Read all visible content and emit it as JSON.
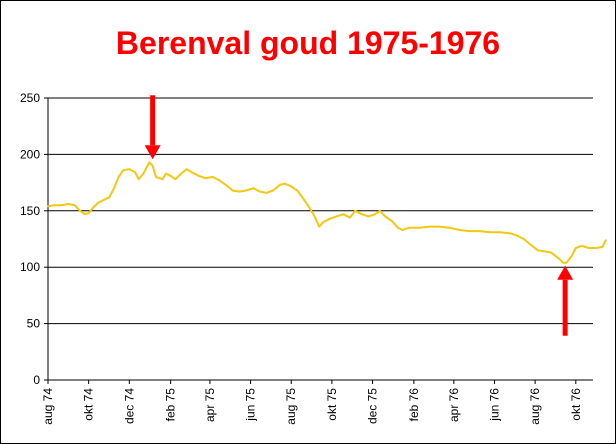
{
  "chart_data": {
    "type": "line",
    "title": "Berenval goud 1975-1976",
    "xlabel": "",
    "ylabel": "",
    "ylim": [
      0,
      250
    ],
    "yticks": [
      0,
      50,
      100,
      150,
      200,
      250
    ],
    "xticks": [
      "aug 74",
      "okt 74",
      "dec 74",
      "feb 75",
      "apr 75",
      "jun 75",
      "aug 75",
      "okt 75",
      "dec 75",
      "feb 76",
      "apr 76",
      "jun 76",
      "aug 76",
      "okt 76"
    ],
    "grid": "horizontal",
    "legend": "none",
    "series": [
      {
        "color": "#f2c811",
        "points": [
          [
            "1974-08-01",
            154
          ],
          [
            "1974-08-10",
            155
          ],
          [
            "1974-08-20",
            155
          ],
          [
            "1974-09-01",
            156
          ],
          [
            "1974-09-10",
            155
          ],
          [
            "1974-09-18",
            150
          ],
          [
            "1974-09-25",
            147
          ],
          [
            "1974-10-01",
            148
          ],
          [
            "1974-10-08",
            153
          ],
          [
            "1974-10-15",
            157
          ],
          [
            "1974-10-25",
            160
          ],
          [
            "1974-11-01",
            162
          ],
          [
            "1974-11-08",
            170
          ],
          [
            "1974-11-15",
            180
          ],
          [
            "1974-11-22",
            186
          ],
          [
            "1974-12-01",
            187
          ],
          [
            "1974-12-10",
            184
          ],
          [
            "1974-12-15",
            178
          ],
          [
            "1974-12-22",
            183
          ],
          [
            "1974-12-31",
            193
          ],
          [
            "1975-01-05",
            190
          ],
          [
            "1975-01-10",
            180
          ],
          [
            "1975-01-20",
            178
          ],
          [
            "1975-01-25",
            183
          ],
          [
            "1975-02-01",
            181
          ],
          [
            "1975-02-08",
            178
          ],
          [
            "1975-02-15",
            182
          ],
          [
            "1975-02-25",
            187
          ],
          [
            "1975-03-05",
            184
          ],
          [
            "1975-03-15",
            181
          ],
          [
            "1975-03-25",
            179
          ],
          [
            "1975-04-05",
            180
          ],
          [
            "1975-04-15",
            177
          ],
          [
            "1975-04-25",
            173
          ],
          [
            "1975-05-05",
            168
          ],
          [
            "1975-05-15",
            167
          ],
          [
            "1975-05-25",
            168
          ],
          [
            "1975-06-05",
            170
          ],
          [
            "1975-06-15",
            167
          ],
          [
            "1975-06-25",
            166
          ],
          [
            "1975-07-05",
            168
          ],
          [
            "1975-07-15",
            173
          ],
          [
            "1975-07-22",
            174
          ],
          [
            "1975-07-31",
            172
          ],
          [
            "1975-08-10",
            168
          ],
          [
            "1975-08-20",
            160
          ],
          [
            "1975-08-28",
            153
          ],
          [
            "1975-09-05",
            145
          ],
          [
            "1975-09-12",
            136
          ],
          [
            "1975-09-18",
            140
          ],
          [
            "1975-09-28",
            143
          ],
          [
            "1975-10-08",
            145
          ],
          [
            "1975-10-18",
            147
          ],
          [
            "1975-10-28",
            144
          ],
          [
            "1975-11-05",
            150
          ],
          [
            "1975-11-15",
            147
          ],
          [
            "1975-11-25",
            145
          ],
          [
            "1975-12-05",
            147
          ],
          [
            "1975-12-12",
            150
          ],
          [
            "1975-12-20",
            145
          ],
          [
            "1975-12-30",
            141
          ],
          [
            "1976-01-08",
            135
          ],
          [
            "1976-01-15",
            133
          ],
          [
            "1976-01-25",
            135
          ],
          [
            "1976-02-10",
            135
          ],
          [
            "1976-02-25",
            136
          ],
          [
            "1976-03-10",
            136
          ],
          [
            "1976-03-25",
            135
          ],
          [
            "1976-04-10",
            133
          ],
          [
            "1976-04-25",
            132
          ],
          [
            "1976-05-10",
            132
          ],
          [
            "1976-05-25",
            131
          ],
          [
            "1976-06-10",
            131
          ],
          [
            "1976-06-25",
            130
          ],
          [
            "1976-07-05",
            128
          ],
          [
            "1976-07-15",
            125
          ],
          [
            "1976-07-25",
            120
          ],
          [
            "1976-08-05",
            115
          ],
          [
            "1976-08-15",
            114
          ],
          [
            "1976-08-25",
            113
          ],
          [
            "1976-09-05",
            108
          ],
          [
            "1976-09-12",
            104
          ],
          [
            "1976-09-17",
            104
          ],
          [
            "1976-09-25",
            110
          ],
          [
            "1976-10-01",
            117
          ],
          [
            "1976-10-10",
            119
          ],
          [
            "1976-10-20",
            117
          ],
          [
            "1976-11-01",
            117
          ],
          [
            "1976-11-10",
            118
          ],
          [
            "1976-11-15",
            124
          ]
        ]
      }
    ],
    "annotations": [
      {
        "type": "arrow-down",
        "x": "1975-01-05",
        "y": 193,
        "color": "#ff0000"
      },
      {
        "type": "arrow-up",
        "x": "1976-09-15",
        "y": 104,
        "color": "#ff0000"
      }
    ],
    "title_color": "#ff0000"
  }
}
